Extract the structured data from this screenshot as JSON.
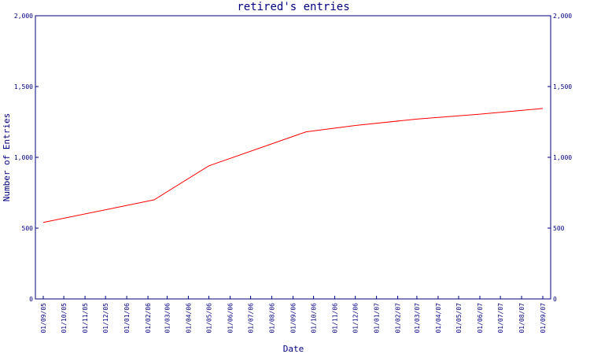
{
  "chart_data": {
    "type": "line",
    "title": "retired's entries",
    "xlabel": "Date",
    "ylabel": "Number of Entries",
    "ylim": [
      0,
      2000
    ],
    "y_ticks": [
      0,
      500,
      1000,
      1500,
      2000
    ],
    "y_tick_labels": [
      "0",
      "500",
      "1,000",
      "1,500",
      "2,000"
    ],
    "x_tick_labels": [
      "01/09/05",
      "01/10/05",
      "01/11/05",
      "01/12/05",
      "01/01/06",
      "01/02/06",
      "01/03/06",
      "01/04/06",
      "01/05/06",
      "01/06/06",
      "01/07/06",
      "01/08/06",
      "01/09/06",
      "01/10/06",
      "01/11/06",
      "01/12/06",
      "01/01/07",
      "01/02/07",
      "01/03/07",
      "01/04/07",
      "01/05/07",
      "01/06/07",
      "01/07/07",
      "01/08/07",
      "01/09/07"
    ],
    "series": [
      {
        "color": "#ff0000",
        "x": [
          "2005-09-01",
          "2006-02-10",
          "2006-05-01",
          "2006-09-20",
          "2006-12-01",
          "2007-03-01",
          "2007-06-01",
          "2007-09-01"
        ],
        "values": [
          540,
          700,
          940,
          1180,
          1225,
          1270,
          1305,
          1345
        ]
      }
    ],
    "grid": false,
    "colors": {
      "axes": "#000080",
      "line": "#ff0000"
    }
  }
}
